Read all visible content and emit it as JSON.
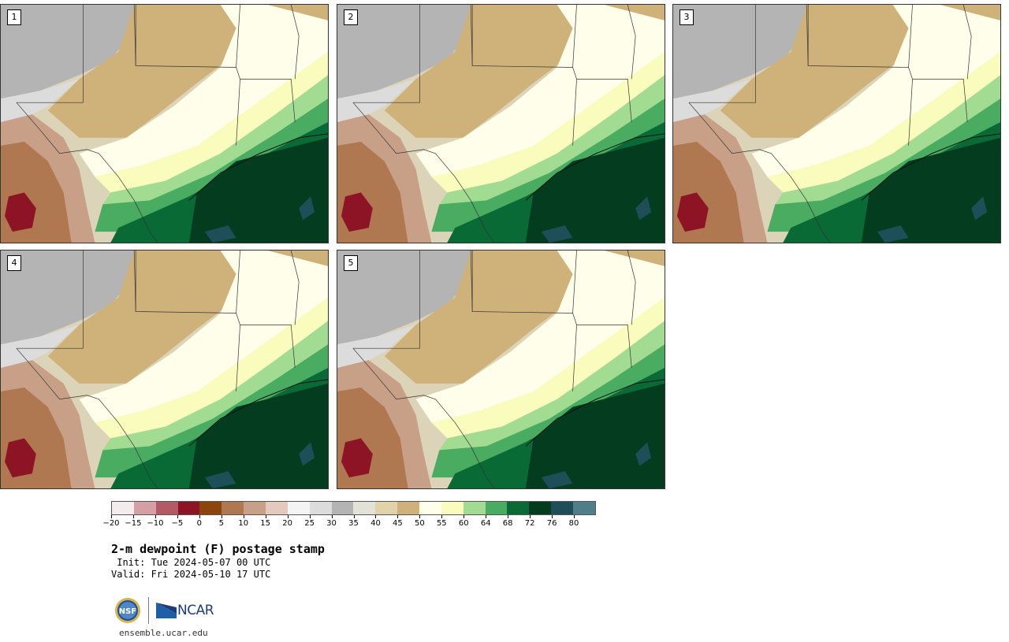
{
  "panels": [
    {
      "label": "1"
    },
    {
      "label": "2"
    },
    {
      "label": "3"
    },
    {
      "label": "4"
    },
    {
      "label": "5"
    }
  ],
  "colorbar": {
    "colors": [
      "#f4ecec",
      "#d4a0a6",
      "#b45a66",
      "#8c1424",
      "#8c460c",
      "#b07850",
      "#c8a088",
      "#e4cabc",
      "#f4f4f4",
      "#dcdcdc",
      "#b4b4b4",
      "#e2e2d6",
      "#e2d2aa",
      "#cfb27a",
      "#fefeea",
      "#fafcbe",
      "#a2dc92",
      "#4aac60",
      "#0a6a36",
      "#043c20",
      "#1e4e58",
      "#507e88"
    ],
    "tick_labels": [
      "−20",
      "−15",
      "−10",
      "−5",
      "0",
      "5",
      "10",
      "15",
      "20",
      "25",
      "30",
      "35",
      "40",
      "45",
      "50",
      "55",
      "60",
      "64",
      "68",
      "72",
      "76",
      "80"
    ]
  },
  "title": "2-m dewpoint (F) postage stamp",
  "init": " Init: Tue 2024-05-07 00 UTC",
  "valid": "Valid: Fri 2024-05-10 17 UTC",
  "logos": {
    "nsf": "NSF",
    "ncar": "NCAR"
  },
  "website": "ensemble.ucar.edu"
}
